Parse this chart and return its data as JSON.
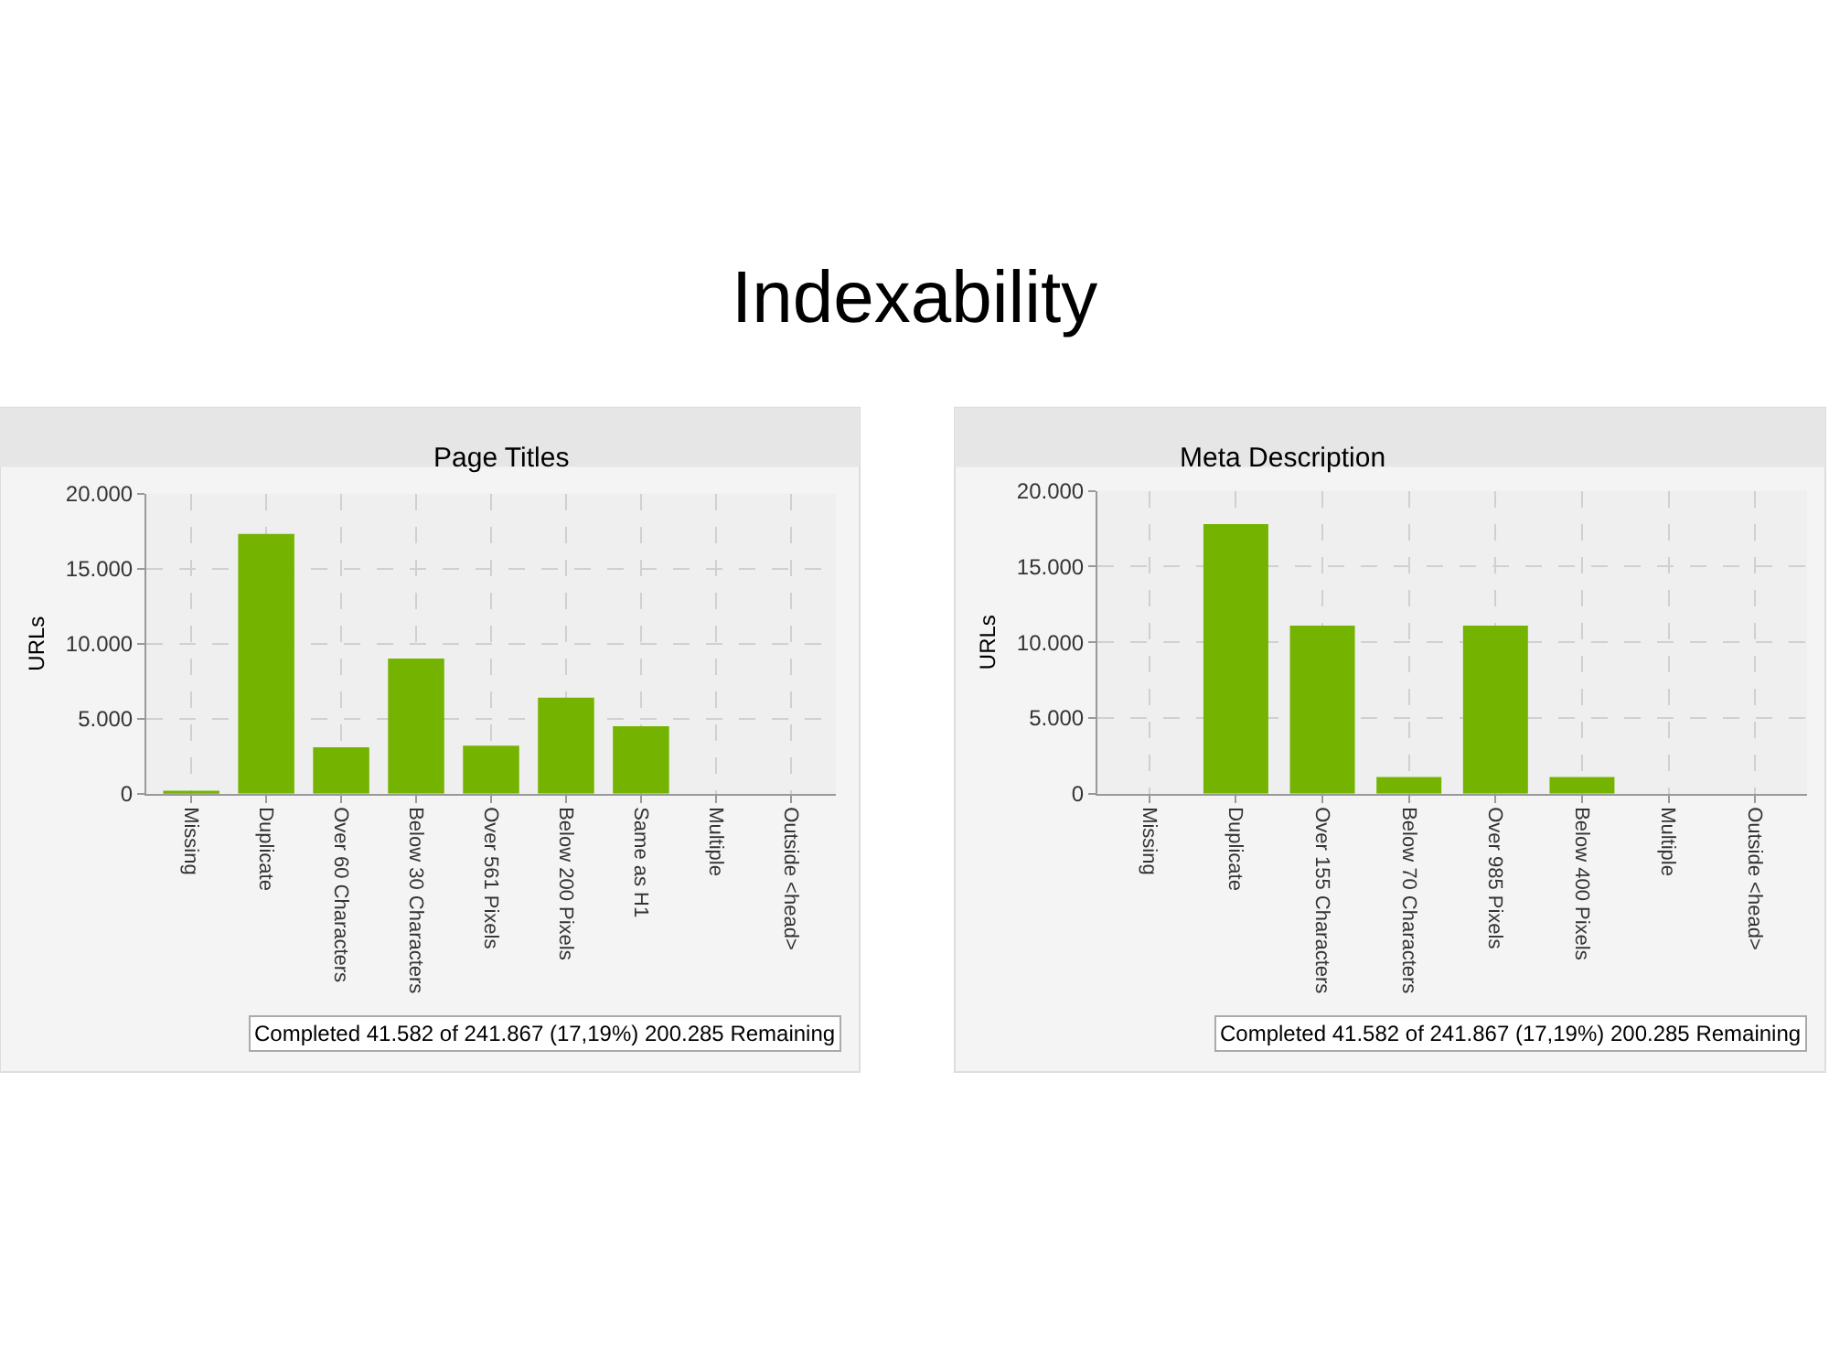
{
  "chart_data": [
    {
      "type": "other",
      "title": "Indexability"
    },
    {
      "type": "bar",
      "title": "Page Titles",
      "ylabel": "URLs",
      "categories": [
        "Missing",
        "Duplicate",
        "Over 60 Characters",
        "Below 30 Characters",
        "Over 561 Pixels",
        "Below 200 Pixels",
        "Same as H1",
        "Multiple",
        "Outside <head>"
      ],
      "values": [
        200,
        17300,
        3100,
        9000,
        3200,
        6400,
        4500,
        0,
        0
      ],
      "color": "#74b300",
      "ylim": [
        0,
        20000
      ],
      "yticks": [
        {
          "value": 0,
          "label": "0"
        },
        {
          "value": 5000,
          "label": "5.000"
        },
        {
          "value": 10000,
          "label": "10.000"
        },
        {
          "value": 15000,
          "label": "15.000"
        },
        {
          "value": 20000,
          "label": "20.000"
        }
      ],
      "grid": true,
      "annotations": [
        "Completed 41.582 of 241.867 (17,19%) 200.285 Remaining"
      ]
    },
    {
      "type": "bar",
      "title": "Meta Description",
      "ylabel": "URLs",
      "categories": [
        "Missing",
        "Duplicate",
        "Over 155 Characters",
        "Below 70 Characters",
        "Over 985 Pixels",
        "Below 400 Pixels",
        "Multiple",
        "Outside <head>"
      ],
      "values": [
        0,
        17800,
        11100,
        1100,
        11100,
        1100,
        0,
        0
      ],
      "color": "#74b300",
      "ylim": [
        0,
        20000
      ],
      "yticks": [
        {
          "value": 0,
          "label": "0"
        },
        {
          "value": 5000,
          "label": "5.000"
        },
        {
          "value": 10000,
          "label": "10.000"
        },
        {
          "value": 15000,
          "label": "15.000"
        },
        {
          "value": 20000,
          "label": "20.000"
        }
      ],
      "grid": true,
      "annotations": [
        "Completed 41.582 of 241.867 (17,19%) 200.285 Remaining"
      ]
    }
  ]
}
